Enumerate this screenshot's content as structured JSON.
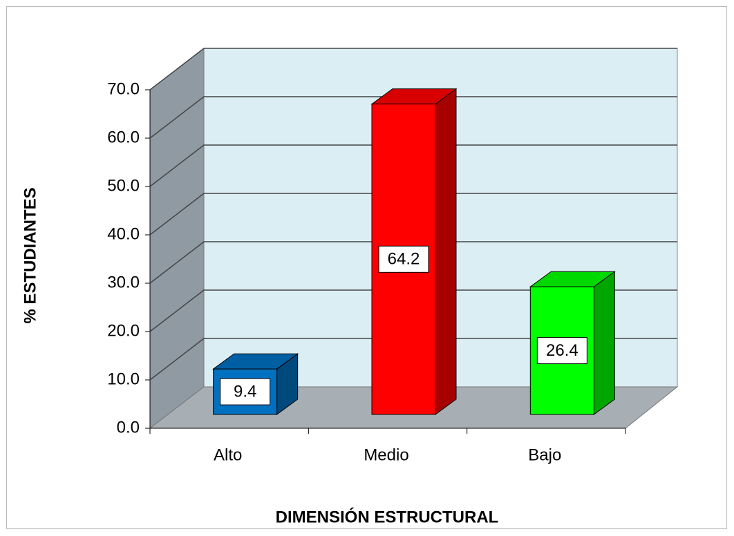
{
  "chart_data": {
    "type": "bar3d",
    "x_label": "DIMENSIÓN ESTRUCTURAL",
    "y_label": "% ESTUDIANTES",
    "categories": [
      "Alto",
      "Medio",
      "Bajo"
    ],
    "values": [
      9.4,
      64.2,
      26.4
    ],
    "colors": [
      "#0070c0",
      "#ff0000",
      "#00ff00"
    ],
    "ylim": [
      0,
      70
    ],
    "yticks": [
      {
        "value": 0,
        "label": "0.0"
      },
      {
        "value": 10,
        "label": "10.0"
      },
      {
        "value": 20,
        "label": "20.0"
      },
      {
        "value": 30,
        "label": "30.0"
      },
      {
        "value": 40,
        "label": "40.0"
      },
      {
        "value": 50,
        "label": "50.0"
      },
      {
        "value": 60,
        "label": "60.0"
      },
      {
        "value": 70,
        "label": "70.0"
      }
    ],
    "grid": true
  }
}
